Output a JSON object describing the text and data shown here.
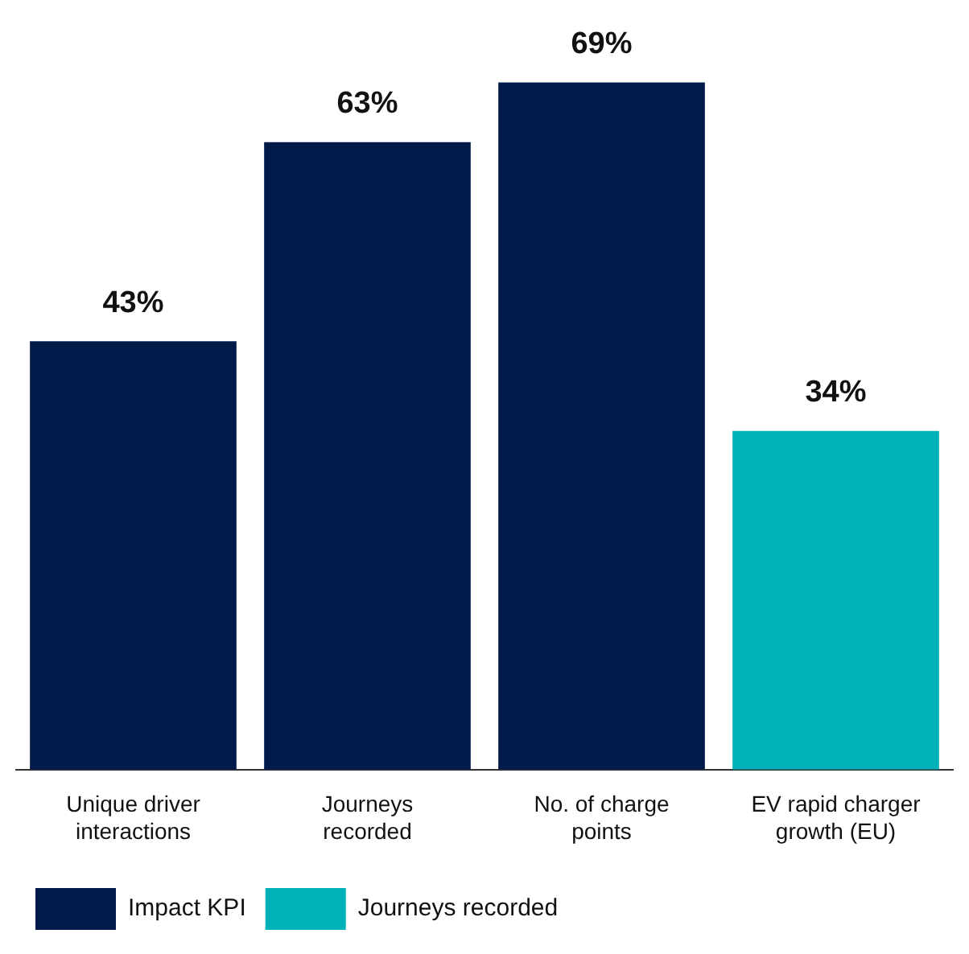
{
  "chart_data": {
    "type": "bar",
    "categories": [
      "Unique driver interactions",
      "Journeys recorded",
      "No. of charge points",
      "EV rapid charger growth (EU)"
    ],
    "series": [
      {
        "name": "Impact KPI",
        "color": "#021a4a",
        "values": [
          43,
          63,
          69,
          null
        ],
        "value_labels": [
          "43%",
          "63%",
          "69%",
          null
        ]
      },
      {
        "name": "Journeys recorded",
        "color": "#00b1b8",
        "values": [
          null,
          null,
          null,
          34
        ],
        "value_labels": [
          null,
          null,
          null,
          "34%"
        ]
      }
    ],
    "legend": "bottom left",
    "grid": false
  }
}
